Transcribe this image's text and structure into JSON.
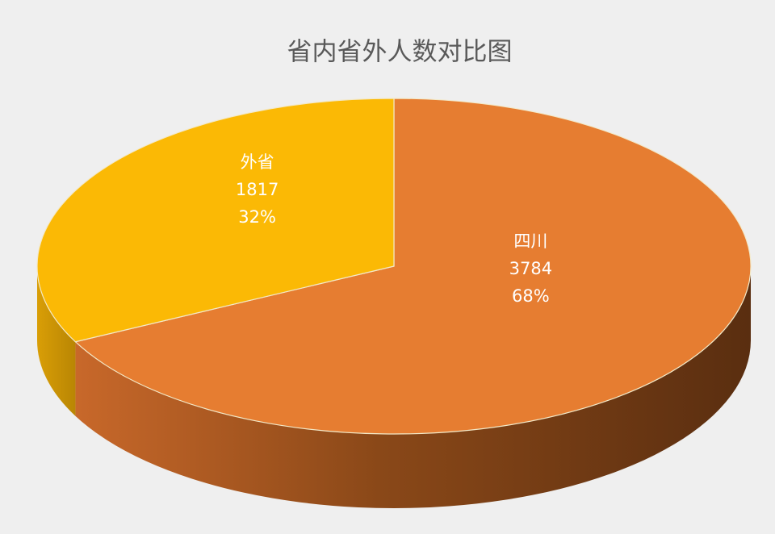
{
  "chart_data": {
    "type": "pie",
    "title": "省内省外人数对比图",
    "categories": [
      "四川",
      "外省"
    ],
    "values": [
      3784,
      1817
    ],
    "percent_labels": [
      "68%",
      "32%"
    ],
    "colors": [
      "#e67d31",
      "#fbb905"
    ]
  }
}
